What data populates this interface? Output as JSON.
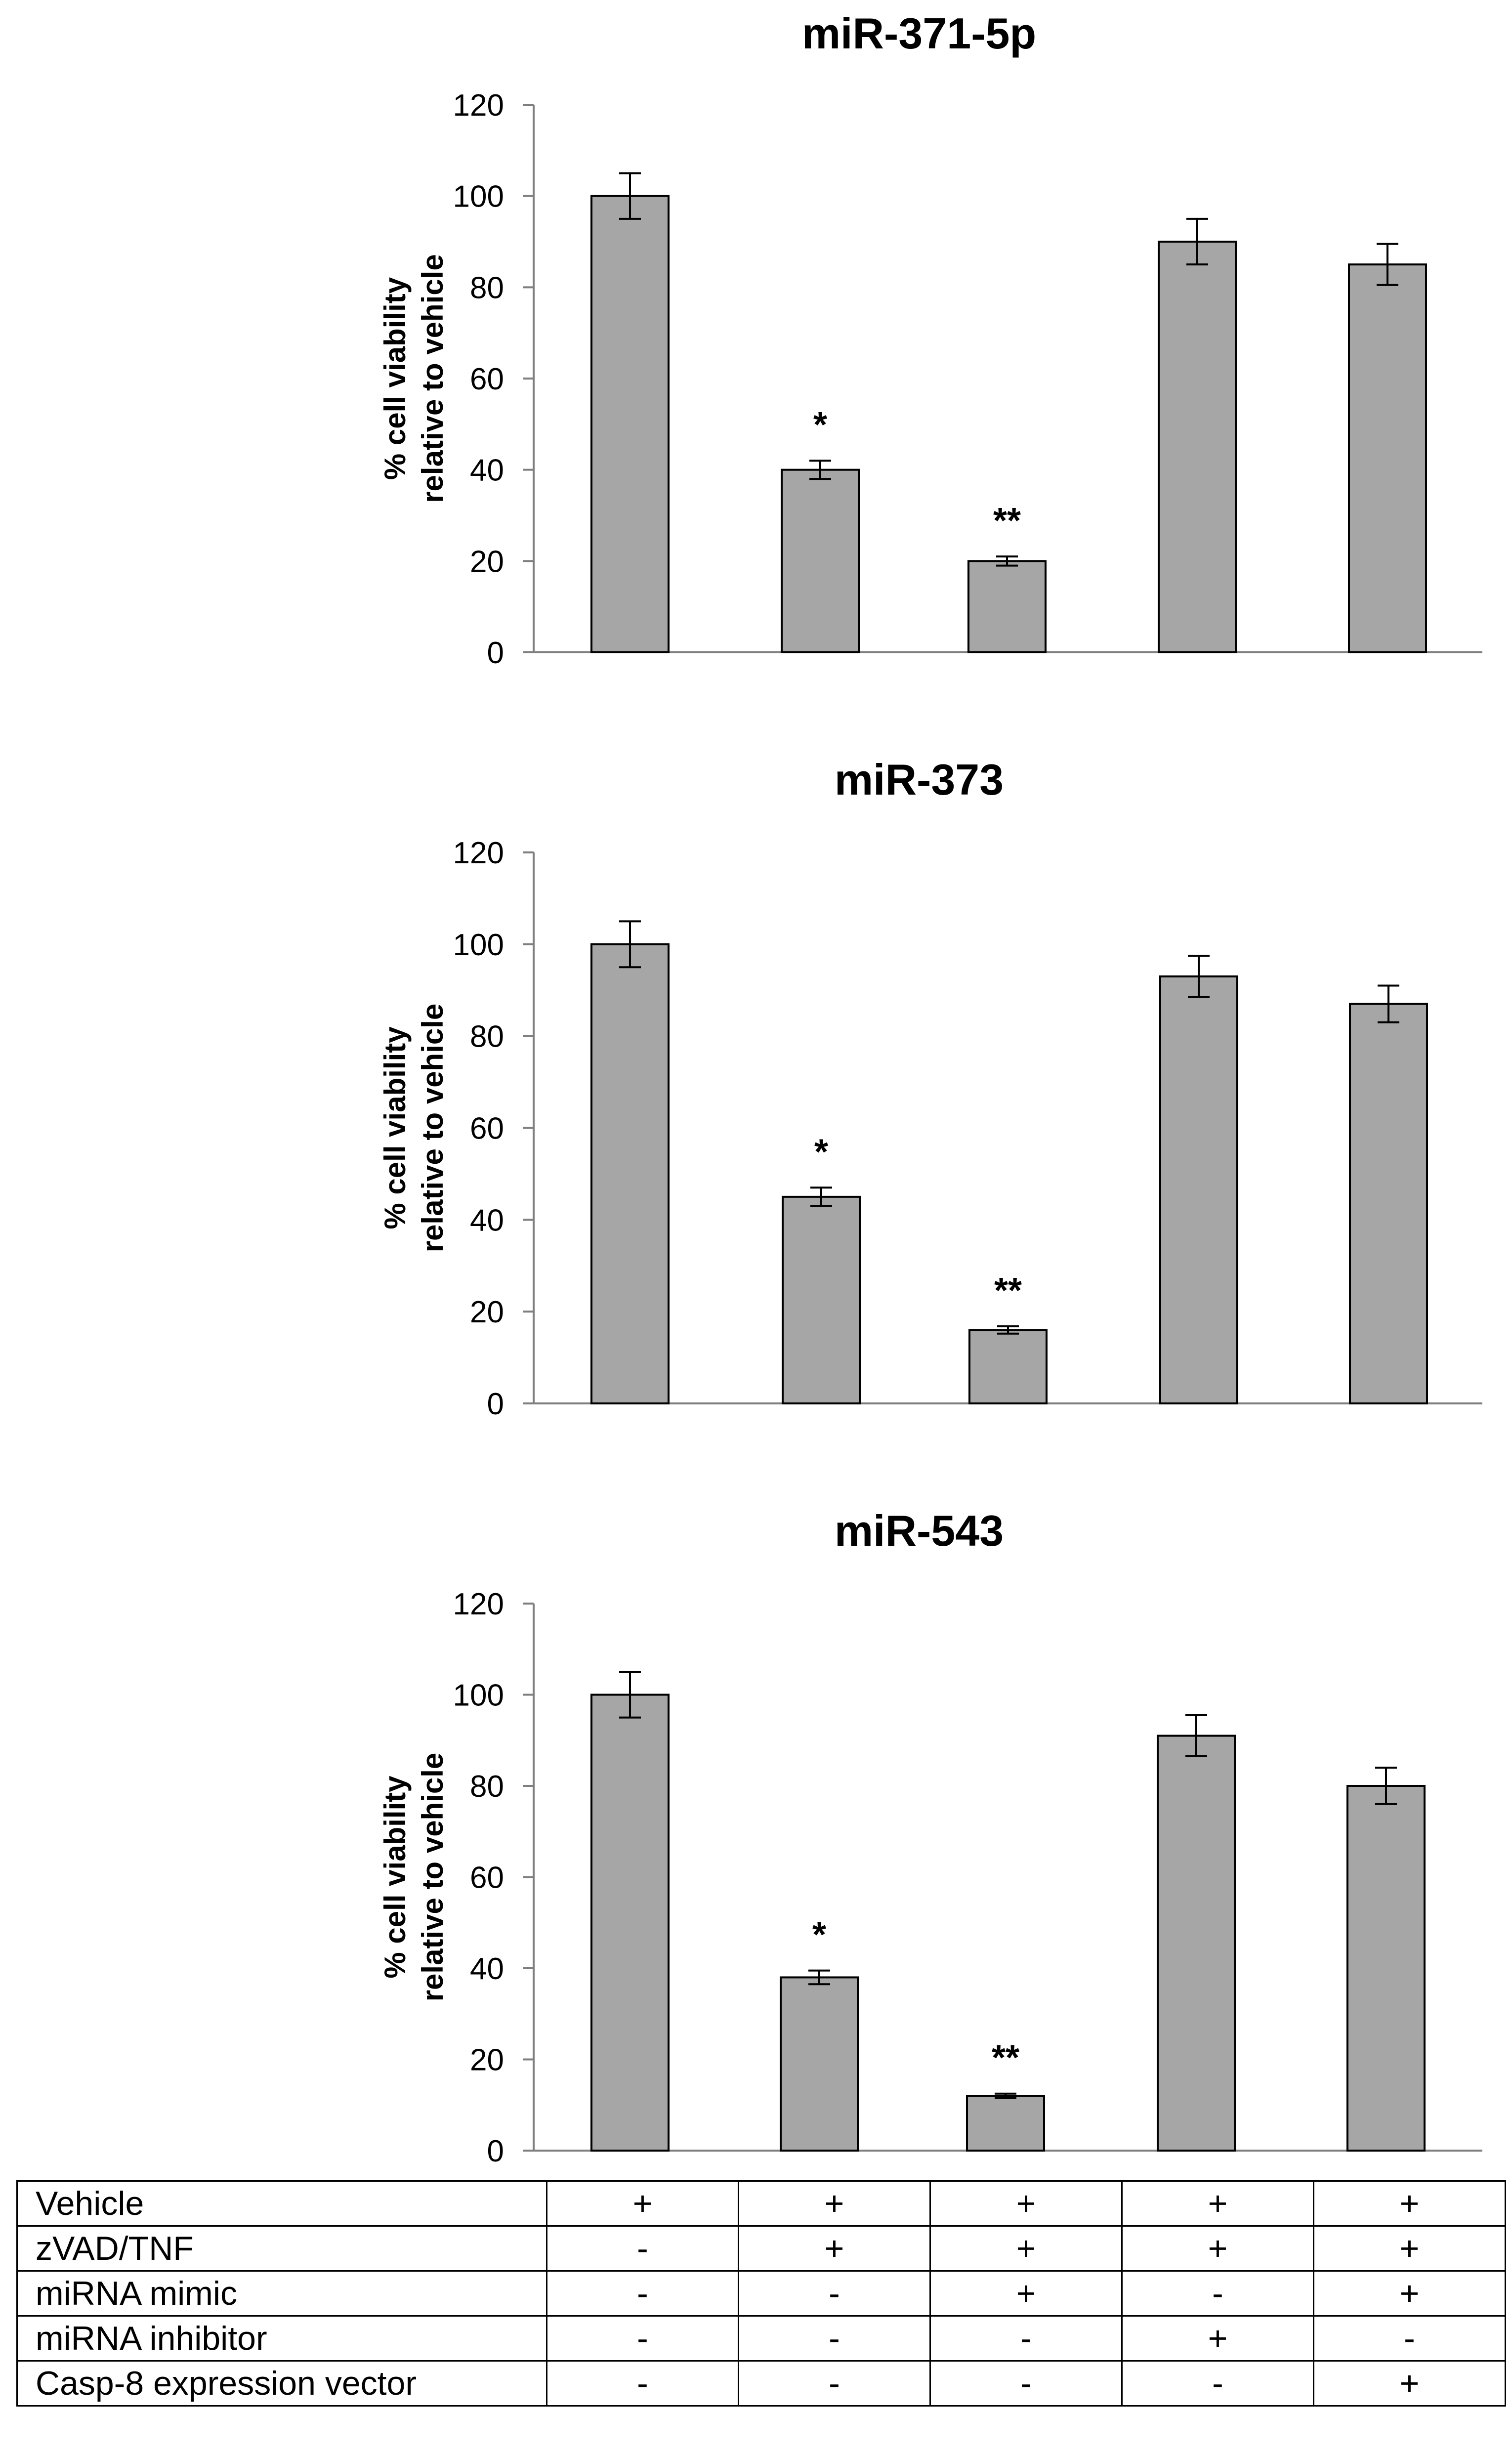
{
  "chart_data": [
    {
      "type": "bar",
      "title": "miR-371-5p",
      "ylabel": "% cell viability\nrelative to vehicle",
      "ylim": [
        0,
        120
      ],
      "yticks": [
        0,
        20,
        40,
        60,
        80,
        100,
        120
      ],
      "grid": false,
      "bar_color": "#a6a6a6",
      "values": [
        100,
        40,
        20,
        90,
        85
      ],
      "errors": [
        5,
        2,
        1,
        5,
        4.5
      ],
      "annotations": [
        "",
        "*",
        "**",
        "",
        ""
      ]
    },
    {
      "type": "bar",
      "title": "miR-373",
      "ylabel": "% cell viability\nrelative to vehicle",
      "ylim": [
        0,
        120
      ],
      "yticks": [
        0,
        20,
        40,
        60,
        80,
        100,
        120
      ],
      "grid": false,
      "bar_color": "#a6a6a6",
      "values": [
        100,
        45,
        16,
        93,
        87
      ],
      "errors": [
        5,
        2,
        0.8,
        4.5,
        4
      ],
      "annotations": [
        "",
        "*",
        "**",
        "",
        ""
      ]
    },
    {
      "type": "bar",
      "title": "miR-543",
      "ylabel": "% cell viability\nrelative to vehicle",
      "ylim": [
        0,
        120
      ],
      "yticks": [
        0,
        20,
        40,
        60,
        80,
        100,
        120
      ],
      "grid": false,
      "bar_color": "#a6a6a6",
      "values": [
        100,
        38,
        12,
        91,
        80
      ],
      "errors": [
        5,
        1.5,
        0.5,
        4.5,
        4
      ],
      "annotations": [
        "",
        "*",
        "**",
        "",
        ""
      ]
    }
  ],
  "conditions_table": [
    {
      "label": "Vehicle",
      "values": [
        "+",
        "+",
        "+",
        "+",
        "+"
      ]
    },
    {
      "label": "zVAD/TNF",
      "values": [
        "-",
        "+",
        "+",
        "+",
        "+"
      ]
    },
    {
      "label": "miRNA mimic",
      "values": [
        "-",
        "-",
        "+",
        "-",
        "+"
      ]
    },
    {
      "label": "miRNA inhibitor",
      "values": [
        "-",
        "-",
        "-",
        "+",
        "-"
      ]
    },
    {
      "label": "Casp-8 expression vector",
      "values": [
        "-",
        "-",
        "-",
        "-",
        "+"
      ]
    }
  ]
}
